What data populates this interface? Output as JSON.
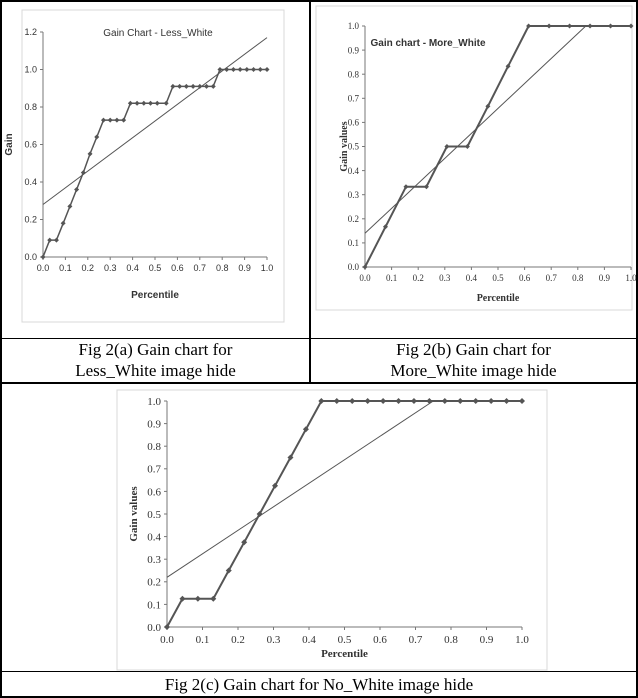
{
  "captions": {
    "a": [
      "Fig 2(a) Gain chart for",
      "Less_White image hide"
    ],
    "b": [
      "Fig 2(b) Gain chart for",
      "More_White image hide"
    ],
    "c": "Fig 2(c) Gain chart for No_White image hide"
  },
  "chart_data": [
    {
      "type": "line",
      "title": "Gain Chart - Less_White",
      "xlabel": "Percentile",
      "ylabel": "Gain",
      "xlim": [
        0,
        1.0
      ],
      "ylim": [
        0,
        1.2
      ],
      "xticks": [
        "0.0",
        "0.1",
        "0.2",
        "0.3",
        "0.4",
        "0.5",
        "0.6",
        "0.7",
        "0.8",
        "0.9",
        "1.0"
      ],
      "yticks": [
        "0.0",
        "0.2",
        "0.4",
        "0.6",
        "0.8",
        "1.0",
        "1.2"
      ],
      "series": [
        {
          "kind": "markers-line",
          "x": [
            0.0,
            0.03,
            0.06,
            0.09,
            0.12,
            0.15,
            0.18,
            0.21,
            0.24,
            0.27,
            0.3,
            0.33,
            0.36,
            0.39,
            0.42,
            0.45,
            0.48,
            0.51,
            0.55,
            0.58,
            0.61,
            0.64,
            0.67,
            0.7,
            0.73,
            0.76,
            0.79,
            0.82,
            0.85,
            0.88,
            0.91,
            0.94,
            0.97,
            1.0
          ],
          "y": [
            0.0,
            0.09,
            0.09,
            0.18,
            0.27,
            0.36,
            0.45,
            0.55,
            0.64,
            0.73,
            0.73,
            0.73,
            0.73,
            0.82,
            0.82,
            0.82,
            0.82,
            0.82,
            0.82,
            0.91,
            0.91,
            0.91,
            0.91,
            0.91,
            0.91,
            0.91,
            1.0,
            1.0,
            1.0,
            1.0,
            1.0,
            1.0,
            1.0,
            1.0
          ]
        },
        {
          "kind": "trend",
          "x": [
            0.0,
            1.0
          ],
          "y": [
            0.28,
            1.17
          ]
        }
      ]
    },
    {
      "type": "line",
      "title": "Gain chart - More_White",
      "xlabel": "Percentile",
      "ylabel": "Gain values",
      "xlim": [
        0,
        1.0
      ],
      "ylim": [
        0,
        1.0
      ],
      "xticks": [
        "0.0",
        "0.1",
        "0.2",
        "0.3",
        "0.4",
        "0.5",
        "0.6",
        "0.7",
        "0.8",
        "0.9",
        "1.0"
      ],
      "yticks": [
        "0.0",
        "0.1",
        "0.2",
        "0.3",
        "0.4",
        "0.5",
        "0.6",
        "0.7",
        "0.8",
        "0.9",
        "1.0"
      ],
      "series": [
        {
          "kind": "markers-line",
          "x": [
            0.0,
            0.077,
            0.154,
            0.231,
            0.308,
            0.385,
            0.462,
            0.538,
            0.615,
            0.692,
            0.769,
            0.846,
            0.923,
            1.0
          ],
          "y": [
            0.0,
            0.167,
            0.333,
            0.333,
            0.5,
            0.5,
            0.667,
            0.833,
            1.0,
            1.0,
            1.0,
            1.0,
            1.0,
            1.0
          ]
        },
        {
          "kind": "trend",
          "x": [
            0.0,
            0.83
          ],
          "y": [
            0.14,
            1.0
          ]
        }
      ]
    },
    {
      "type": "line",
      "title": "",
      "xlabel": "Percentile",
      "ylabel": "Gain values",
      "xlim": [
        0,
        1.0
      ],
      "ylim": [
        0,
        1.0
      ],
      "xticks": [
        "0.0",
        "0.1",
        "0.2",
        "0.3",
        "0.4",
        "0.5",
        "0.6",
        "0.7",
        "0.8",
        "0.9",
        "1.0"
      ],
      "yticks": [
        "0.0",
        "0.1",
        "0.2",
        "0.3",
        "0.4",
        "0.5",
        "0.6",
        "0.7",
        "0.8",
        "0.9",
        "1.0"
      ],
      "series": [
        {
          "kind": "markers-line",
          "x": [
            0.0,
            0.0435,
            0.087,
            0.1304,
            0.1739,
            0.2174,
            0.2609,
            0.3043,
            0.3478,
            0.3913,
            0.4348,
            0.4783,
            0.5217,
            0.5652,
            0.6087,
            0.6522,
            0.6957,
            0.7391,
            0.7826,
            0.8261,
            0.8696,
            0.913,
            0.9565,
            1.0
          ],
          "y": [
            0.0,
            0.125,
            0.125,
            0.125,
            0.25,
            0.375,
            0.5,
            0.625,
            0.75,
            0.875,
            1.0,
            1.0,
            1.0,
            1.0,
            1.0,
            1.0,
            1.0,
            1.0,
            1.0,
            1.0,
            1.0,
            1.0,
            1.0,
            1.0
          ]
        },
        {
          "kind": "trend",
          "x": [
            0.0,
            0.75
          ],
          "y": [
            0.22,
            1.0
          ]
        }
      ]
    }
  ]
}
